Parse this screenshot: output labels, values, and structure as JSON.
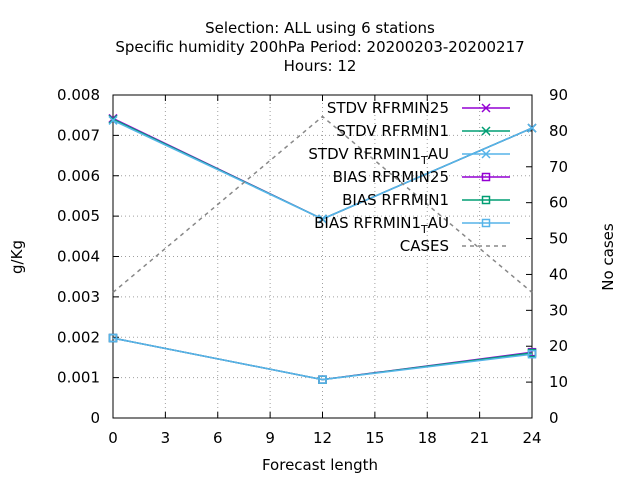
{
  "chart_data": {
    "type": "line",
    "title_lines": [
      "Selection: ALL using     6 stations",
      "Specific humidity 200hPa   Period: 20200203-20200217",
      "Hours:  12"
    ],
    "xlabel": "Forecast length",
    "ylabel": "g/Kg",
    "y2label": "No cases",
    "x": [
      0,
      12,
      24
    ],
    "xlim": [
      0,
      24
    ],
    "ylim": [
      0,
      0.008
    ],
    "y2lim": [
      0,
      90
    ],
    "xticks": [
      "0",
      "3",
      "6",
      "9",
      "12",
      "15",
      "18",
      "21",
      "24"
    ],
    "yticks": [
      "0",
      "0.001",
      "0.002",
      "0.003",
      "0.004",
      "0.005",
      "0.006",
      "0.007",
      "0.008"
    ],
    "y2ticks": [
      "0",
      "10",
      "20",
      "30",
      "40",
      "50",
      "60",
      "70",
      "80",
      "90"
    ],
    "grid": true,
    "legend_position": "top-right",
    "series": [
      {
        "name": "STDV RFRMIN25",
        "values": [
          0.00742,
          0.00493,
          0.00718
        ],
        "color": "#9400d3",
        "marker": "x",
        "axis": "y"
      },
      {
        "name": "STDV RFRMIN1",
        "values": [
          0.0074,
          0.00493,
          0.00718
        ],
        "color": "#009e73",
        "marker": "x",
        "axis": "y"
      },
      {
        "name": "STDV RFRMIN1_T_AU",
        "values": [
          0.00737,
          0.00493,
          0.00718
        ],
        "color": "#56b4e9",
        "marker": "x",
        "axis": "y"
      },
      {
        "name": "BIAS RFRMIN25",
        "values": [
          0.00198,
          0.00095,
          0.00163
        ],
        "color": "#9400d3",
        "marker": "square",
        "axis": "y"
      },
      {
        "name": "BIAS RFRMIN1",
        "values": [
          0.00198,
          0.00095,
          0.00161
        ],
        "color": "#009e73",
        "marker": "square",
        "axis": "y"
      },
      {
        "name": "BIAS RFRMIN1_T_AU",
        "values": [
          0.00198,
          0.00095,
          0.00158
        ],
        "color": "#56b4e9",
        "marker": "square",
        "axis": "y"
      },
      {
        "name": "CASES",
        "values": [
          35,
          84,
          35
        ],
        "color": "#888888",
        "marker": "none",
        "dashed": true,
        "axis": "y2"
      }
    ]
  }
}
